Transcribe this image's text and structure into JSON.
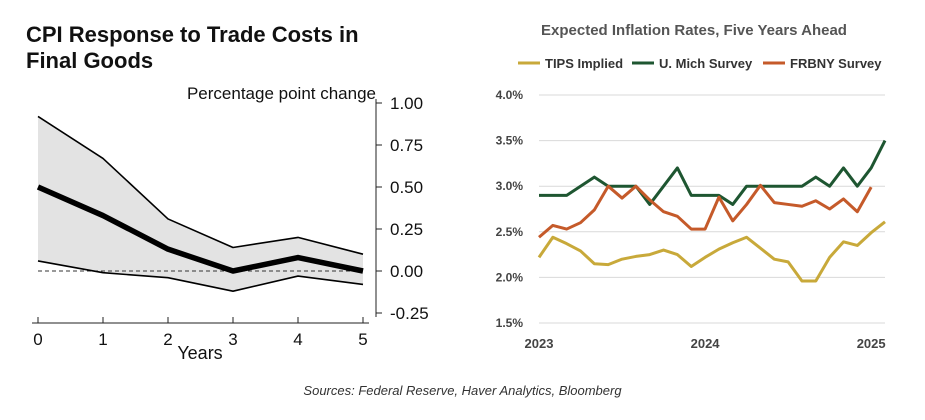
{
  "left": {
    "chart_data": {
      "type": "line",
      "title": "CPI Response to Trade Costs in Final Goods",
      "title_lines": [
        "CPI Response to Trade Costs in",
        "Final Goods"
      ],
      "ylabel": "Percentage point change",
      "xlabel": "Years",
      "x": [
        0,
        1,
        2,
        3,
        4,
        5
      ],
      "xlim": [
        0,
        5
      ],
      "ylim": [
        -0.25,
        1.0
      ],
      "yticks": [
        1.0,
        0.75,
        0.5,
        0.25,
        0.0,
        -0.25
      ],
      "ytick_labels": [
        "1.00",
        "0.75",
        "0.50",
        "0.25",
        "0.00",
        "-0.25"
      ],
      "xtick_labels": [
        "0",
        "1",
        "2",
        "3",
        "4",
        "5"
      ],
      "series": [
        {
          "values": [
            0.5,
            0.33,
            0.13,
            0.0,
            0.08,
            0.0
          ]
        },
        {
          "values": [
            0.92,
            0.67,
            0.31,
            0.14,
            0.2,
            0.1
          ]
        },
        {
          "values": [
            0.06,
            -0.01,
            -0.04,
            -0.12,
            -0.03,
            -0.08
          ]
        }
      ],
      "zero_line": "dashed",
      "band_color": "#e3e3e3"
    }
  },
  "right": {
    "chart_data": {
      "type": "line",
      "title": "Expected Inflation Rates, Five Years Ahead",
      "x_start": "2023-01",
      "xlim": [
        "2023-01",
        "2025-02"
      ],
      "xtick_labels": [
        "2023",
        "2024",
        "2025"
      ],
      "ylim": [
        1.5,
        4.0
      ],
      "yticks": [
        1.5,
        2.0,
        2.5,
        3.0,
        3.5,
        4.0
      ],
      "ytick_labels": [
        "1.5%",
        "2.0%",
        "2.5%",
        "3.0%",
        "3.5%",
        "4.0%"
      ],
      "legend_position": "top",
      "series": [
        {
          "name": "TIPS Implied",
          "color": "#c8a93a",
          "values": [
            2.22,
            2.44,
            2.37,
            2.29,
            2.15,
            2.14,
            2.2,
            2.23,
            2.25,
            2.3,
            2.25,
            2.12,
            2.22,
            2.31,
            2.38,
            2.44,
            2.32,
            2.2,
            2.17,
            1.96,
            1.96,
            2.22,
            2.39,
            2.35,
            2.49,
            2.61
          ]
        },
        {
          "name": "U. Mich Survey",
          "color": "#1e5631",
          "values": [
            2.9,
            2.9,
            2.9,
            3.0,
            3.1,
            3.0,
            3.0,
            3.0,
            2.8,
            3.0,
            3.2,
            2.9,
            2.9,
            2.9,
            2.8,
            3.0,
            3.0,
            3.0,
            3.0,
            3.0,
            3.1,
            3.0,
            3.2,
            3.0,
            3.2,
            3.5
          ]
        },
        {
          "name": "FRBNY Survey",
          "color": "#c55a2a",
          "values": [
            2.44,
            2.57,
            2.53,
            2.6,
            2.74,
            3.0,
            2.87,
            3.0,
            2.85,
            2.72,
            2.67,
            2.53,
            2.53,
            2.88,
            2.62,
            2.8,
            3.01,
            2.82,
            2.8,
            2.78,
            2.84,
            2.75,
            2.86,
            2.72,
            2.99
          ]
        }
      ]
    }
  },
  "footer": "Sources: Federal Reserve, Haver Analytics, Bloomberg"
}
